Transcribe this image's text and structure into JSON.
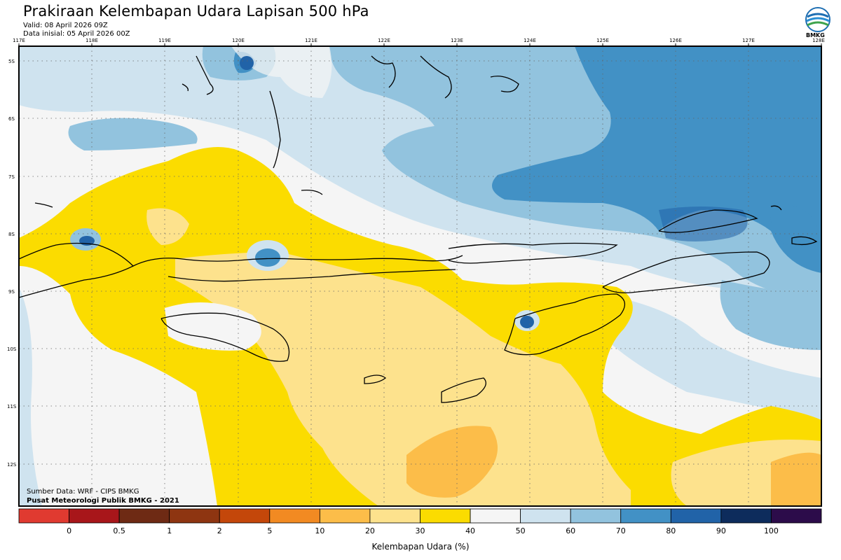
{
  "title": "Prakiraan Kelembapan Udara Lapisan 500 hPa",
  "valid": "Valid: 08 April 2026 09Z",
  "init": "Data inisial: 05 April 2026 00Z",
  "logo_text": "BMKG",
  "source": "Sumber Data: WRF - CIPS BMKG",
  "org": "Pusat Meteorologi Publik BMKG - 2021",
  "colorbar_label": "Kelembapan Udara (%)",
  "lon_labels": [
    "117E",
    "118E",
    "119E",
    "120E",
    "121E",
    "122E",
    "123E",
    "124E",
    "125E",
    "126E",
    "127E",
    "128E"
  ],
  "lat_labels": [
    "5S",
    "6S",
    "7S",
    "8S",
    "9S",
    "10S",
    "11S",
    "12S"
  ],
  "colorbar_ticks": [
    "0",
    "0.5",
    "1",
    "2",
    "5",
    "10",
    "20",
    "30",
    "40",
    "50",
    "60",
    "70",
    "80",
    "90",
    "100"
  ],
  "colorbar_colors": [
    "#e03a30",
    "#a8161a",
    "#6e2a14",
    "#8e3511",
    "#c4470a",
    "#f28a22",
    "#fcbd49",
    "#fde28d",
    "#fbdc00",
    "#f5f5f5",
    "#cfe3ef",
    "#92c3de",
    "#4291c5",
    "#2163a8",
    "#0d2c5c",
    "#2c0c4a"
  ],
  "palette": {
    "dry_light": "#fde28d",
    "yellow": "#fbdc00",
    "orange": "#fcbd49",
    "white": "#f5f5f5",
    "pale_blue": "#cfe3ef",
    "light_blue": "#92c3de",
    "mid_blue": "#4291c5",
    "dark_blue": "#2163a8"
  }
}
